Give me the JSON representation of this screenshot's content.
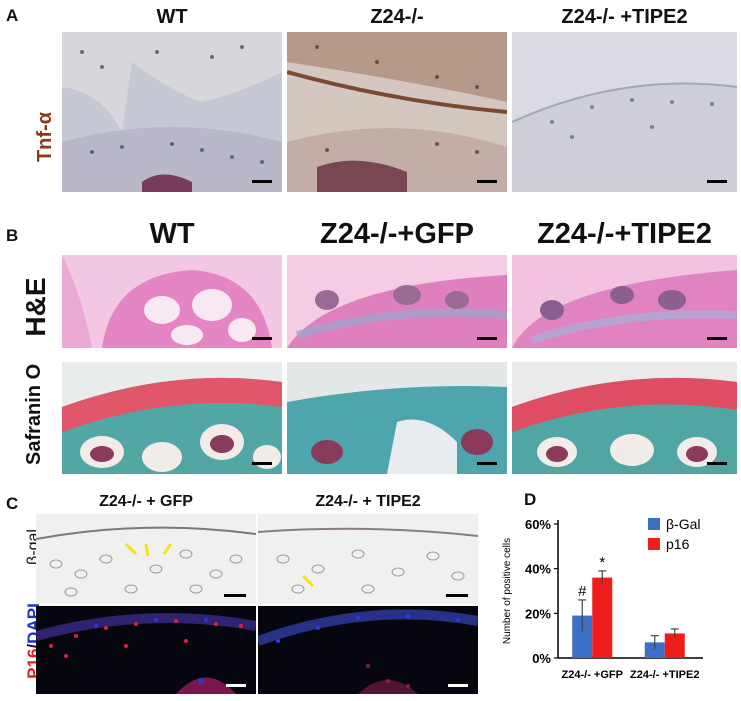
{
  "panel_a": {
    "letter": "A",
    "headers": [
      "WT",
      "Z24-/-",
      "Z24-/- +TIPE2"
    ],
    "row_label_prefix": "Tnf-",
    "row_label_greek": "α"
  },
  "panel_b": {
    "letter": "B",
    "headers": [
      "WT",
      "Z24-/-+GFP",
      "Z24-/-+TIPE2"
    ],
    "row_labels": [
      "H&E",
      "Safranin O"
    ]
  },
  "panel_c": {
    "letter": "C",
    "headers": [
      "Z24-/- + GFP",
      "Z24-/- + TIPE2"
    ],
    "row1_label": "β-gal",
    "row2_label_red": "P16",
    "row2_label_sep": "/",
    "row2_label_blue": "DAPI"
  },
  "panel_d": {
    "letter": "D",
    "chart_data": {
      "type": "bar",
      "ylabel": "Number of positive cells",
      "ylim": [
        0,
        60
      ],
      "yticks": [
        "0%",
        "20%",
        "40%",
        "60%"
      ],
      "categories": [
        "Z24-/- +GFP",
        "Z24-/- +TIPE2"
      ],
      "series": [
        {
          "name": "β-Gal",
          "color": "#3b6fc7",
          "values": [
            19,
            7
          ],
          "errors": [
            7,
            3
          ]
        },
        {
          "name": "p16",
          "color": "#ef1c1c",
          "values": [
            36,
            11
          ],
          "errors": [
            3,
            2
          ]
        }
      ],
      "annotations": [
        {
          "text": "#",
          "category": 0,
          "series": 0
        },
        {
          "text": "*",
          "category": 0,
          "series": 1
        }
      ],
      "legend": "top-right"
    }
  }
}
